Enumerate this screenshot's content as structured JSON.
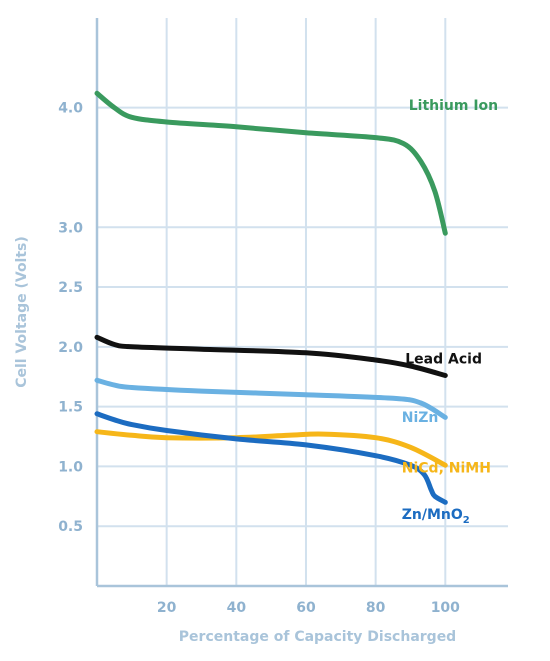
{
  "chart_data": {
    "type": "line",
    "xlabel": "Percentage of Capacity Discharged",
    "ylabel": "Cell Voltage (Volts)",
    "xlim": [
      0,
      118
    ],
    "ylim": [
      0.0,
      4.75
    ],
    "x_ticks": [
      20,
      40,
      60,
      80,
      100
    ],
    "x_tick_labels": [
      "20",
      "40",
      "60",
      "80",
      "100"
    ],
    "y_ticks": [
      0.5,
      1.0,
      1.5,
      2.0,
      2.5,
      3.0,
      4.0
    ],
    "y_tick_labels": [
      "0.5",
      "1.0",
      "1.5",
      "2.0",
      "2.5",
      "3.0",
      "4.0"
    ],
    "grid": true,
    "colors": {
      "grid": "#d2e1ee",
      "axis": "#a9c4da",
      "tick_text": "#8fb2cf",
      "title_text": "#a9c4da"
    },
    "series": [
      {
        "name": "Lithium Ion",
        "color": "#3a9a5e",
        "points": [
          [
            0,
            4.12
          ],
          [
            5,
            4.0
          ],
          [
            10,
            3.92
          ],
          [
            20,
            3.88
          ],
          [
            40,
            3.84
          ],
          [
            60,
            3.79
          ],
          [
            80,
            3.75
          ],
          [
            88,
            3.7
          ],
          [
            93,
            3.55
          ],
          [
            97,
            3.3
          ],
          [
            100,
            2.95
          ]
        ]
      },
      {
        "name": "Lead Acid",
        "color": "#111111",
        "points": [
          [
            0,
            2.08
          ],
          [
            5,
            2.02
          ],
          [
            10,
            2.0
          ],
          [
            30,
            1.98
          ],
          [
            60,
            1.95
          ],
          [
            80,
            1.89
          ],
          [
            90,
            1.84
          ],
          [
            100,
            1.76
          ]
        ]
      },
      {
        "name": "NiZn",
        "color": "#6ab1e2",
        "points": [
          [
            0,
            1.72
          ],
          [
            5,
            1.68
          ],
          [
            10,
            1.66
          ],
          [
            30,
            1.63
          ],
          [
            60,
            1.6
          ],
          [
            85,
            1.57
          ],
          [
            93,
            1.53
          ],
          [
            100,
            1.41
          ]
        ]
      },
      {
        "name": "NiCd, NiMH",
        "color": "#f6b619",
        "points": [
          [
            0,
            1.29
          ],
          [
            10,
            1.26
          ],
          [
            20,
            1.24
          ],
          [
            40,
            1.24
          ],
          [
            55,
            1.26
          ],
          [
            65,
            1.27
          ],
          [
            80,
            1.24
          ],
          [
            90,
            1.16
          ],
          [
            100,
            1.01
          ]
        ]
      },
      {
        "name": "Zn/MnO2",
        "color": "#1c6cc1",
        "points": [
          [
            0,
            1.44
          ],
          [
            5,
            1.39
          ],
          [
            10,
            1.35
          ],
          [
            20,
            1.3
          ],
          [
            40,
            1.23
          ],
          [
            60,
            1.18
          ],
          [
            80,
            1.09
          ],
          [
            90,
            1.01
          ],
          [
            94,
            0.93
          ],
          [
            96,
            0.8
          ],
          [
            97,
            0.75
          ],
          [
            100,
            0.7
          ]
        ]
      }
    ],
    "labels": [
      {
        "series": 0,
        "text": "Lithium Ion",
        "at": [
          89.5,
          3.98
        ]
      },
      {
        "series": 1,
        "text": "Lead Acid",
        "at": [
          88.5,
          1.86
        ]
      },
      {
        "series": 2,
        "text": "NiZn",
        "at": [
          87.5,
          1.37
        ]
      },
      {
        "series": 3,
        "text": "NiCd, NiMH",
        "at": [
          87.5,
          0.95
        ]
      },
      {
        "series": 4,
        "text": "Zn/MnO",
        "subscript": "2",
        "at": [
          87.5,
          0.56
        ]
      }
    ]
  }
}
